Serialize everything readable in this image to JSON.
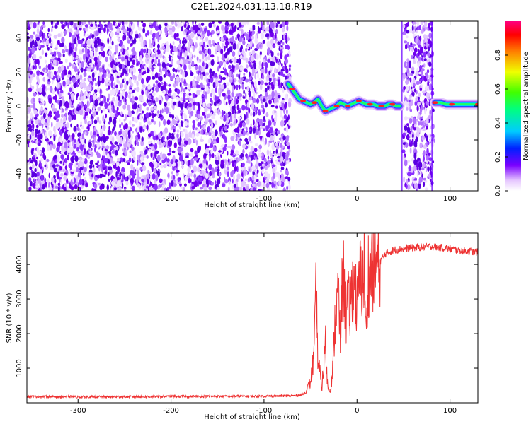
{
  "title": "C2E1.2024.031.13.18.R19",
  "chart_data": [
    {
      "type": "heatmap",
      "xlabel": "Height of straight line (km)",
      "ylabel": "Frequency (Hz)",
      "xlim": [
        -355,
        130
      ],
      "ylim": [
        -50,
        50
      ],
      "x_ticks": [
        -300,
        -200,
        -100,
        0,
        100
      ],
      "x_tick_labels": [
        "-300",
        "-200",
        "-100",
        "0",
        "100"
      ],
      "y_ticks": [
        -40,
        -20,
        0,
        20,
        40
      ],
      "y_tick_labels": [
        "-40",
        "-20",
        "0",
        "20",
        "40"
      ],
      "noise_regions": [
        [
          -355,
          -72
        ],
        [
          50,
          82
        ]
      ],
      "signal_trace": {
        "x": [
          -74,
          -70,
          -66,
          -62,
          -58,
          -54,
          -50,
          -46,
          -42,
          -38,
          -34,
          -30,
          -26,
          -22,
          -18,
          -14,
          -10,
          -6,
          -2,
          2,
          6,
          10,
          14,
          18,
          22,
          26,
          30,
          34,
          38,
          42,
          46,
          84,
          90,
          96,
          102,
          110,
          120,
          130
        ],
        "y": [
          13,
          10,
          7,
          4,
          3,
          2,
          1,
          2,
          4,
          0,
          -3,
          -2,
          -1,
          0,
          2,
          1,
          0,
          1,
          2,
          3,
          2,
          1,
          1,
          1,
          0,
          0,
          0,
          1,
          1,
          0,
          0,
          2,
          2,
          1,
          1,
          1,
          1,
          1
        ]
      },
      "colorbar": {
        "label": "Normalized spectral amplitude",
        "range": [
          0,
          1
        ],
        "ticks": [
          0,
          0.2,
          0.4,
          0.6,
          0.8
        ],
        "tick_labels": [
          "0.0",
          "0.2",
          "0.4",
          "0.6",
          "0.8"
        ]
      },
      "grid": false
    },
    {
      "type": "line",
      "xlabel": "Height of straight line (km)",
      "ylabel": "SNR (10 * v/v)",
      "xlim": [
        -355,
        130
      ],
      "ylim": [
        0,
        4900
      ],
      "x_ticks": [
        -300,
        -200,
        -100,
        0,
        100
      ],
      "x_tick_labels": [
        "-300",
        "-200",
        "-100",
        "0",
        "100"
      ],
      "y_ticks": [
        1000,
        2000,
        3000,
        4000
      ],
      "y_tick_labels": [
        "1000",
        "2000",
        "3000",
        "4000"
      ],
      "color": "#ee3333",
      "series": [
        {
          "x": [
            -355,
            -300,
            -250,
            -200,
            -150,
            -100,
            -70,
            -60,
            -55,
            -50,
            -46,
            -44,
            -42,
            -40,
            -38,
            -36,
            -34,
            -32,
            -30,
            -28,
            -26,
            -24,
            -22,
            -20,
            -18,
            -16,
            -14,
            -12,
            -10,
            -8,
            -6,
            -4,
            -2,
            0,
            2,
            4,
            6,
            8,
            10,
            12,
            14,
            16,
            18,
            20,
            22,
            24,
            26,
            28,
            30,
            35,
            40,
            50,
            60,
            70,
            80,
            90,
            100,
            110,
            120,
            130
          ],
          "y": [
            180,
            170,
            175,
            180,
            185,
            190,
            200,
            220,
            300,
            600,
            1400,
            3300,
            1200,
            900,
            400,
            1000,
            1800,
            600,
            300,
            500,
            1000,
            2200,
            2800,
            3200,
            1800,
            3300,
            3600,
            2200,
            3000,
            2600,
            3100,
            3500,
            3300,
            2700,
            3400,
            3700,
            3500,
            3900,
            1700,
            3800,
            3700,
            4000,
            3900,
            4050,
            4100,
            4000,
            4150,
            4200,
            4300,
            4350,
            4420,
            4450,
            4480,
            4500,
            4520,
            4480,
            4450,
            4400,
            4380,
            4350
          ]
        }
      ],
      "grid": false
    }
  ]
}
